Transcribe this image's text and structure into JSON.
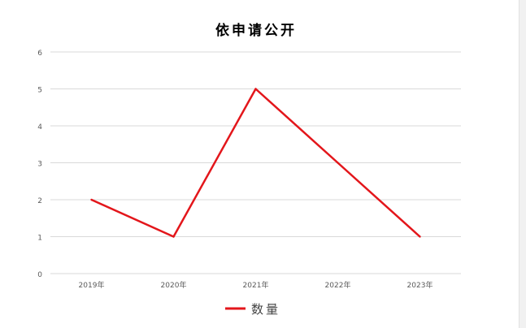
{
  "chart_data": {
    "type": "line",
    "title": "依申请公开",
    "categories": [
      "2019年",
      "2020年",
      "2021年",
      "2022年",
      "2023年"
    ],
    "series": [
      {
        "name": "数量",
        "values": [
          2,
          1,
          5,
          3,
          1
        ],
        "color": "#e3161b"
      }
    ],
    "ylim": [
      0,
      6
    ],
    "yticks": [
      0,
      1,
      2,
      3,
      4,
      5,
      6
    ],
    "grid": true,
    "legend": "bottom",
    "xlabel": "",
    "ylabel": ""
  }
}
